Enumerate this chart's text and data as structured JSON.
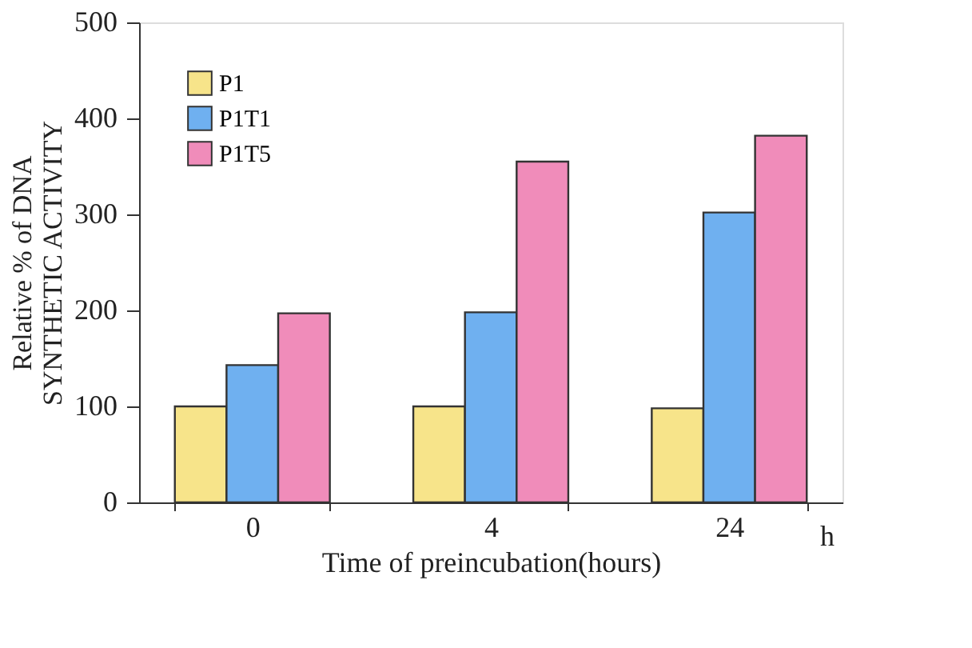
{
  "chart_data": {
    "type": "bar",
    "xlabel": "Time of preincubation(hours)",
    "ylabel": "Relative % of DNA\nSYNTHETIC ACTIVITY",
    "categories": [
      "0",
      "4",
      "24"
    ],
    "series": [
      {
        "name": "P1",
        "color": "#f7e48a",
        "values": [
          100,
          100,
          98
        ]
      },
      {
        "name": "P1T1",
        "color": "#6fb0f0",
        "values": [
          143,
          198,
          302
        ]
      },
      {
        "name": "P1T5",
        "color": "#f08cba",
        "values": [
          197,
          355,
          382
        ]
      }
    ],
    "ylim": [
      0,
      500
    ],
    "yticks": [
      0,
      100,
      200,
      300,
      400,
      500
    ],
    "grid": false,
    "legend": "top left",
    "annotations": [
      "h"
    ]
  }
}
